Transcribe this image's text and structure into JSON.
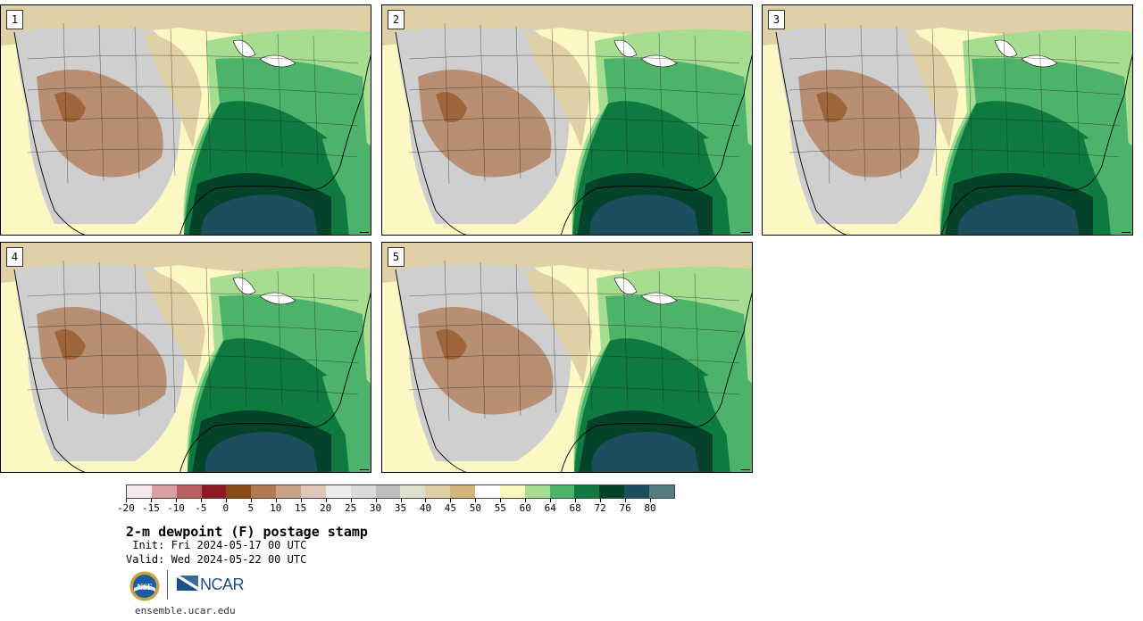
{
  "panels": [
    {
      "label": "1"
    },
    {
      "label": "2"
    },
    {
      "label": "3"
    },
    {
      "label": "4"
    },
    {
      "label": "5"
    }
  ],
  "colorbar": {
    "colors": [
      "#f5e9ea",
      "#d9a0a1",
      "#b85f63",
      "#8f1b22",
      "#8c4a14",
      "#b07a54",
      "#c9a189",
      "#e1c7b7",
      "#ececec",
      "#dadada",
      "#bdbdbd",
      "#dfdfd0",
      "#dfd0a5",
      "#d1b57a",
      "#ffffff",
      "#fbf8c4",
      "#a6dd90",
      "#4db36a",
      "#0e7a40",
      "#04422a",
      "#1c4e5e",
      "#537d81"
    ],
    "ticks": [
      "-20",
      "-15",
      "-10",
      "-5",
      "0",
      "5",
      "10",
      "15",
      "20",
      "25",
      "30",
      "35",
      "40",
      "45",
      "50",
      "55",
      "60",
      "64",
      "68",
      "72",
      "76",
      "80"
    ]
  },
  "title": "2-m dewpoint (F) postage stamp",
  "init_line": " Init: Fri 2024-05-17 00 UTC",
  "valid_line": "Valid: Wed 2024-05-22 00 UTC",
  "logos": {
    "nsf": "NSF",
    "ncar": "NCAR"
  },
  "footer_url": "ensemble.ucar.edu",
  "colors": {
    "ocean_gulf": "#1c4e5e",
    "humid": "#04422a",
    "moist": "#0e7a40",
    "mid": "#4db36a",
    "light": "#a6dd90",
    "cream": "#fbf8c4",
    "dry_grey": "#cfcfcf",
    "dry_brown": "#b07a54",
    "tan": "#dfd0a5"
  }
}
